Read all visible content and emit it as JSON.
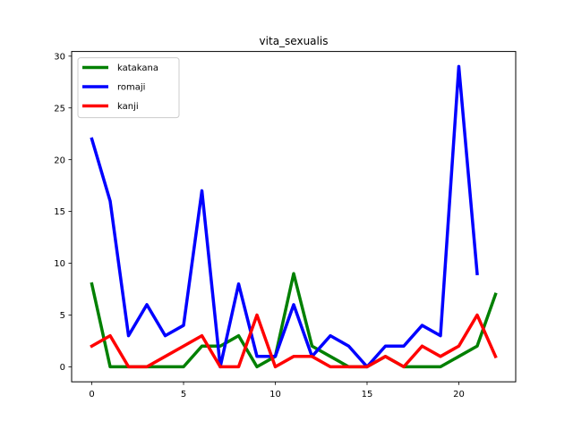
{
  "chart_data": {
    "type": "line",
    "title": "vita_sexualis",
    "xlabel": "",
    "ylabel": "",
    "xlim": [
      -1.1,
      23.1
    ],
    "ylim": [
      -1.45,
      30.45
    ],
    "xticks": [
      0,
      5,
      10,
      15,
      20
    ],
    "yticks": [
      0,
      5,
      10,
      15,
      20,
      25,
      30
    ],
    "grid": false,
    "legend_position": "top-left",
    "series": [
      {
        "name": "katakana",
        "color": "#008000",
        "x": [
          0,
          1,
          2,
          3,
          4,
          5,
          6,
          7,
          8,
          9,
          10,
          11,
          12,
          13,
          14,
          15,
          16,
          17,
          18,
          19,
          20,
          21,
          22
        ],
        "values": [
          8,
          0,
          0,
          0,
          0,
          0,
          2,
          2,
          3,
          0,
          1,
          9,
          2,
          1,
          0,
          0,
          1,
          0,
          0,
          0,
          1,
          2,
          7
        ]
      },
      {
        "name": "romaji",
        "color": "#0000ff",
        "x": [
          0,
          1,
          2,
          3,
          4,
          5,
          6,
          7,
          8,
          9,
          10,
          11,
          12,
          13,
          14,
          15,
          16,
          17,
          18,
          19,
          20,
          21
        ],
        "values": [
          22,
          16,
          3,
          6,
          3,
          4,
          17,
          0,
          8,
          1,
          1,
          6,
          1,
          3,
          2,
          0,
          2,
          2,
          4,
          3,
          29,
          9
        ]
      },
      {
        "name": "kanji",
        "color": "#ff0000",
        "x": [
          0,
          1,
          2,
          3,
          4,
          5,
          6,
          7,
          8,
          9,
          10,
          11,
          12,
          13,
          14,
          15,
          16,
          17,
          18,
          19,
          20,
          21,
          22
        ],
        "values": [
          2,
          3,
          0,
          0,
          1,
          2,
          3,
          0,
          0,
          5,
          0,
          1,
          1,
          0,
          0,
          0,
          1,
          0,
          2,
          1,
          2,
          5,
          1
        ]
      }
    ]
  }
}
